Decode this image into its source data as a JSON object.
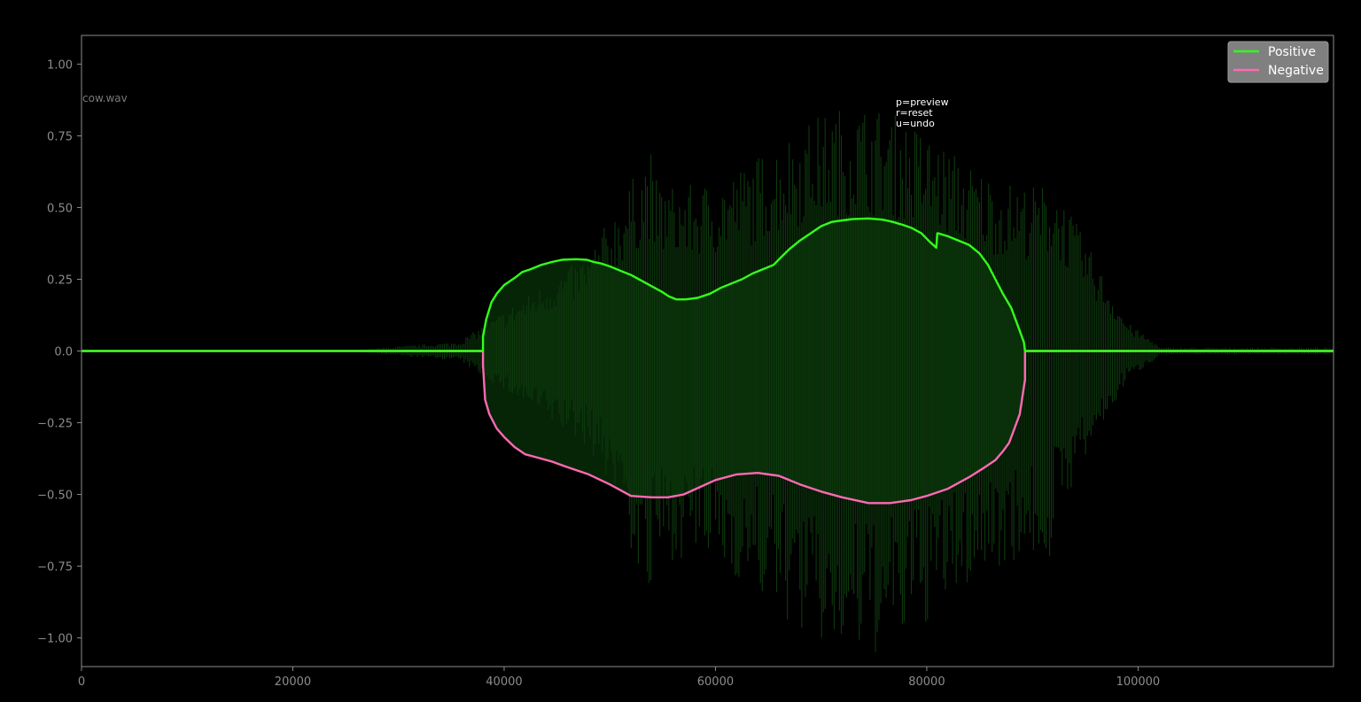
{
  "file_label": "cow.wav",
  "hints": [
    "p=preview",
    "r=reset",
    "u=undo"
  ],
  "colors": {
    "background": "#000000",
    "axis": "#8c8c8c",
    "waveform": "#0d3a0d",
    "envelope_fill": "#062506",
    "positive": "#33ff1a",
    "negative": "#ff69b4",
    "legend_bg": "#808080"
  },
  "chart_data": {
    "type": "line",
    "title": "",
    "xlabel": "",
    "ylabel": "",
    "xlim": [
      0,
      118500
    ],
    "ylim": [
      -1.1,
      1.1
    ],
    "xticks": [
      0,
      20000,
      40000,
      60000,
      80000,
      100000
    ],
    "xtick_labels": [
      "0",
      "20000",
      "40000",
      "60000",
      "80000",
      "100000"
    ],
    "yticks": [
      1.0,
      0.75,
      0.5,
      0.25,
      0.0,
      -0.25,
      -0.5,
      -0.75,
      -1.0
    ],
    "ytick_labels": [
      "1.00",
      "0.75",
      "0.50",
      "0.25",
      "0.0",
      "−0.25",
      "−0.50",
      "−0.75",
      "−1.00"
    ],
    "grid": false,
    "legend_position": "top-right",
    "series": [
      {
        "name": "Positive",
        "color": "#33ff1a",
        "x": [
          0,
          38000,
          38000,
          38300,
          38800,
          39300,
          40000,
          41000,
          41700,
          42500,
          43500,
          44500,
          45500,
          46800,
          47800,
          48500,
          49200,
          50000,
          51000,
          52000,
          53000,
          54000,
          55000,
          55600,
          56300,
          57200,
          58300,
          59500,
          60500,
          61500,
          62500,
          63500,
          64500,
          65500,
          66300,
          67000,
          68000,
          69000,
          70000,
          71000,
          72000,
          73000,
          74500,
          75800,
          76800,
          77700,
          78500,
          79500,
          80300,
          80900,
          81000,
          81100,
          82000,
          83000,
          84000,
          85000,
          85800,
          86500,
          87200,
          88000,
          88800,
          89200,
          89300,
          89300,
          118500
        ],
        "y": [
          0,
          0,
          0.05,
          0.11,
          0.17,
          0.2,
          0.23,
          0.255,
          0.275,
          0.285,
          0.3,
          0.31,
          0.318,
          0.32,
          0.318,
          0.31,
          0.305,
          0.295,
          0.28,
          0.265,
          0.245,
          0.225,
          0.205,
          0.19,
          0.18,
          0.18,
          0.185,
          0.2,
          0.22,
          0.235,
          0.25,
          0.27,
          0.285,
          0.3,
          0.33,
          0.355,
          0.385,
          0.41,
          0.435,
          0.45,
          0.455,
          0.46,
          0.462,
          0.458,
          0.45,
          0.44,
          0.43,
          0.41,
          0.38,
          0.36,
          0.41,
          0.41,
          0.4,
          0.385,
          0.37,
          0.34,
          0.3,
          0.25,
          0.2,
          0.15,
          0.07,
          0.03,
          0.0,
          0,
          0
        ]
      },
      {
        "name": "Negative",
        "color": "#ff69b4",
        "x": [
          0,
          38000,
          38000,
          38200,
          38600,
          39300,
          40000,
          41000,
          42000,
          43000,
          44500,
          46000,
          48000,
          50000,
          52000,
          54000,
          55500,
          57000,
          58500,
          60000,
          62000,
          64000,
          66000,
          68000,
          70000,
          72000,
          74500,
          76500,
          78500,
          80000,
          82000,
          84000,
          85500,
          86500,
          87200,
          87800,
          88300,
          88800,
          89300,
          89300,
          118500
        ],
        "y": [
          0,
          0,
          -0.05,
          -0.17,
          -0.22,
          -0.27,
          -0.3,
          -0.335,
          -0.36,
          -0.37,
          -0.385,
          -0.405,
          -0.43,
          -0.465,
          -0.505,
          -0.51,
          -0.51,
          -0.5,
          -0.475,
          -0.45,
          -0.43,
          -0.425,
          -0.435,
          -0.465,
          -0.49,
          -0.51,
          -0.53,
          -0.53,
          -0.52,
          -0.505,
          -0.48,
          -0.44,
          -0.405,
          -0.38,
          -0.35,
          -0.32,
          -0.27,
          -0.22,
          -0.1,
          0,
          0
        ]
      }
    ]
  }
}
